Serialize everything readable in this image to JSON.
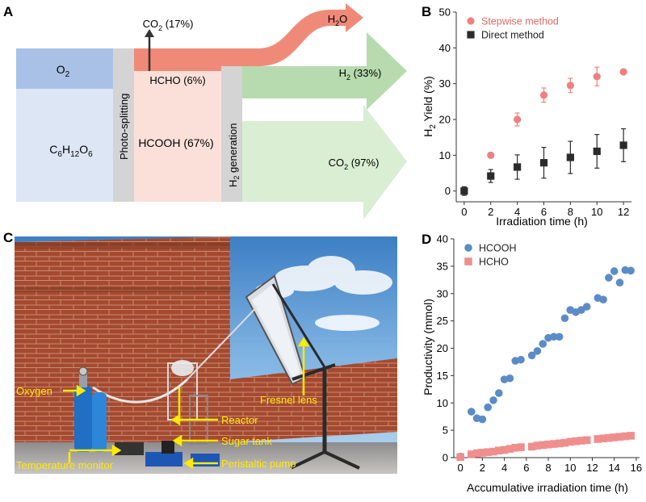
{
  "panels": {
    "a": "A",
    "b": "B",
    "c": "C",
    "d": "D"
  },
  "sankey": {
    "o2": "O",
    "o2_sub": "2",
    "glucose": [
      "C",
      "6",
      "H",
      "12",
      "O",
      "6"
    ],
    "photo_splitting": "Photo-splitting",
    "h2gen_pre": "H",
    "h2gen_sub": "2",
    "h2gen_post": " generation",
    "co2_top_pre": "CO",
    "co2_top_sub": "2",
    "co2_top_post": " (17%)",
    "hcho": "HCHO (6%)",
    "hcooh": "HCOOH (67%)",
    "h2o_pre": "H",
    "h2o_sub": "2",
    "h2o_post": "O",
    "h2_pre": "H",
    "h2_sub": "2",
    "h2_post": " (33%)",
    "co2_bot_pre": "CO",
    "co2_bot_sub": "2",
    "co2_bot_post": " (97%)",
    "colors": {
      "o2": "#a9c1e6",
      "glucose": "#dce6f5",
      "gray": "#d4d4d4",
      "salmon": "#f08a78",
      "pink": "#fbe0da",
      "green": "#b7dbae",
      "light_green": "#d9eed3"
    }
  },
  "photo_labels": {
    "oxygen": "Oxygen",
    "temp_monitor": "Temperature monitor",
    "fresnel": "Fresnel lens",
    "reactor": "Reactor",
    "sugar_tank": "Sugar tank",
    "pump": "Peristaltic pump",
    "label_color": "#ffea00"
  },
  "chart_data": [
    {
      "type": "scatter",
      "title": "",
      "xlabel": "Irradiation time (h)",
      "ylabel_pre": "H",
      "ylabel_sub": "2",
      "ylabel_post": " Yield (%)",
      "xlim": [
        -0.6,
        12.6
      ],
      "ylim": [
        -3,
        50
      ],
      "xticks": [
        0,
        2,
        4,
        6,
        8,
        10,
        12
      ],
      "yticks": [
        0,
        10,
        20,
        30,
        40,
        50
      ],
      "legend": "top-left",
      "series": [
        {
          "name": "Stepwise method",
          "color": "#f08080",
          "marker": "circle",
          "x": [
            2,
            4,
            6,
            8,
            10,
            12
          ],
          "y": [
            10,
            20,
            26.8,
            29.5,
            32,
            33.3
          ],
          "err": [
            0,
            1.8,
            2,
            2,
            2.6,
            0
          ]
        },
        {
          "name": "Direct method",
          "color": "#2b2b2b",
          "marker": "square",
          "x": [
            0,
            2,
            4,
            6,
            8,
            10,
            12
          ],
          "y": [
            0,
            4.2,
            6.7,
            7.9,
            9.4,
            11.1,
            12.8
          ],
          "err": [
            1.2,
            1.8,
            3.4,
            4.3,
            4.5,
            4.7,
            4.6
          ]
        }
      ]
    },
    {
      "type": "scatter",
      "title": "",
      "xlabel": "Accumulative irradiation time (h)",
      "ylabel": "Productivity (mmol)",
      "xlim": [
        -0.6,
        16.3
      ],
      "ylim": [
        0,
        40
      ],
      "xticks": [
        0,
        2,
        4,
        6,
        8,
        10,
        12,
        14,
        16
      ],
      "yticks": [
        0,
        5,
        10,
        15,
        20,
        25,
        30,
        35,
        40
      ],
      "legend": "top-left",
      "series": [
        {
          "name": "HCOOH",
          "color": "#5b8cc7",
          "marker": "circle",
          "x": [
            0,
            1,
            1.5,
            2,
            2.5,
            3,
            3.5,
            4,
            4.5,
            5,
            5.5,
            6.5,
            7,
            7.5,
            8,
            8.5,
            9,
            9.5,
            10,
            10.5,
            11,
            11.5,
            12.5,
            13,
            13.5,
            14,
            14.5,
            15,
            15.5
          ],
          "y": [
            0.2,
            8.4,
            7.2,
            7.0,
            9.2,
            10.5,
            11.8,
            14.3,
            14.5,
            17.7,
            17.9,
            18.7,
            19.5,
            20.8,
            21.9,
            22.1,
            22.1,
            25.5,
            27.0,
            26.6,
            27.0,
            27.6,
            29.2,
            28.9,
            32.9,
            34.1,
            32.0,
            34.3,
            34.2
          ]
        },
        {
          "name": "HCHO",
          "color": "#f08e8e",
          "marker": "square",
          "x": [
            0,
            1,
            1.5,
            2,
            2.5,
            3,
            3.5,
            4,
            4.5,
            5,
            5.5,
            6.5,
            7,
            7.5,
            8,
            8.5,
            9,
            9.5,
            10,
            10.5,
            11,
            11.5,
            12.5,
            13,
            13.5,
            14,
            14.5,
            15,
            15.5
          ],
          "y": [
            0.1,
            0.6,
            0.8,
            0.9,
            1.0,
            1.1,
            1.3,
            1.4,
            1.6,
            1.8,
            1.9,
            2.0,
            2.2,
            2.3,
            2.4,
            2.5,
            2.6,
            2.7,
            2.9,
            3.0,
            3.1,
            3.2,
            3.4,
            3.5,
            3.6,
            3.7,
            3.8,
            3.9,
            4.0
          ]
        }
      ]
    }
  ]
}
